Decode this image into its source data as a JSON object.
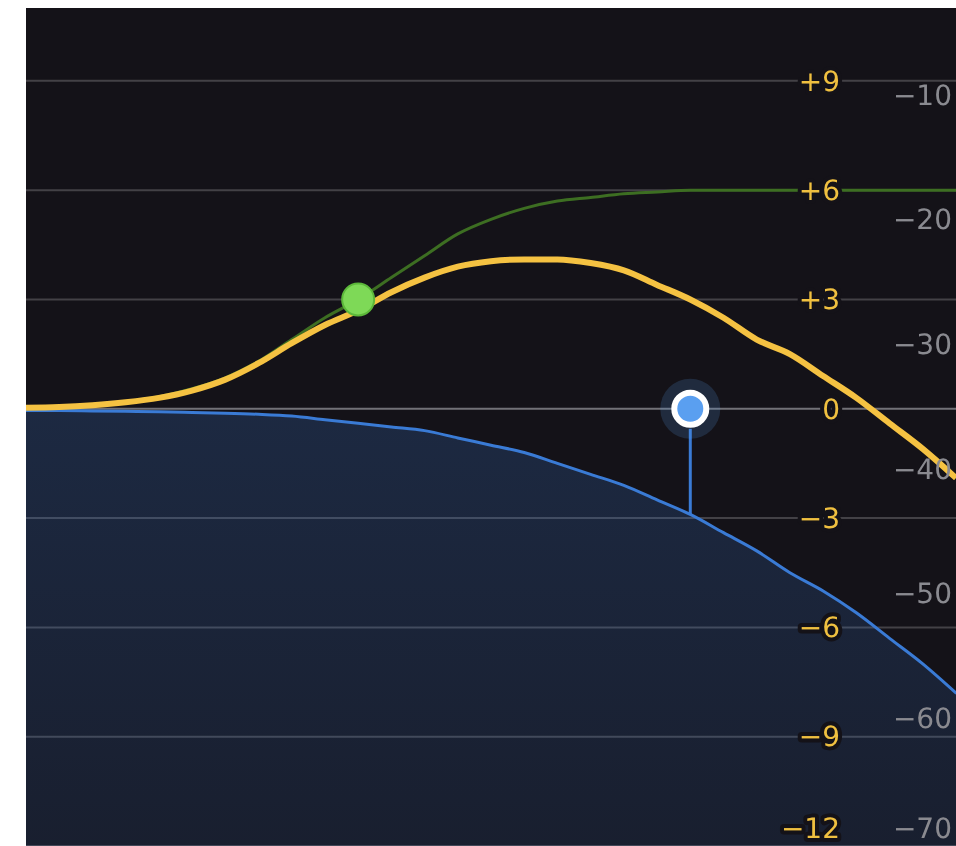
{
  "chart_data": {
    "type": "line",
    "categories": [
      null,
      null,
      null,
      null,
      null,
      null,
      null,
      null,
      null,
      null,
      null,
      null,
      null,
      null,
      null,
      null,
      null,
      null,
      null,
      null,
      null,
      null,
      null,
      null,
      null,
      null,
      null,
      null,
      null
    ],
    "series": [
      {
        "type": "area",
        "color": "#3a7bd5",
        "values": [
          -0.05,
          -0.05,
          -0.06,
          -0.07,
          -0.08,
          -0.1,
          -0.12,
          -0.15,
          -0.2,
          -0.3,
          -0.4,
          -0.5,
          -0.6,
          -0.8,
          -1.0,
          -1.2,
          -1.5,
          -1.8,
          -2.1,
          -2.5,
          -2.9,
          -3.4,
          -3.9,
          -4.5,
          -5.0,
          -5.6,
          -6.3,
          -7.0,
          -7.8
        ]
      },
      {
        "color": "#3d6e22",
        "values": [
          0.05,
          0.07,
          0.12,
          0.2,
          0.33,
          0.55,
          0.85,
          1.3,
          1.9,
          2.5,
          3.0,
          3.6,
          4.2,
          4.8,
          5.2,
          5.5,
          5.7,
          5.8,
          5.9,
          5.95,
          6.0,
          6.0,
          6.0,
          6.0,
          6.0,
          6.0,
          6.0,
          6.0,
          6.0
        ]
      },
      {
        "color": "#f5c242",
        "values": [
          0.03,
          0.05,
          0.1,
          0.18,
          0.3,
          0.5,
          0.8,
          1.25,
          1.8,
          2.3,
          2.7,
          3.2,
          3.6,
          3.9,
          4.05,
          4.1,
          4.1,
          4.0,
          3.8,
          3.4,
          3.0,
          2.5,
          1.9,
          1.5,
          0.9,
          0.3,
          -0.4,
          -1.1,
          -1.9
        ]
      },
      {
        "type": "scatter",
        "marker": "circle",
        "color": "#7ed957",
        "values": [
          null,
          null,
          null,
          null,
          null,
          null,
          null,
          null,
          null,
          null,
          3,
          null,
          null,
          null,
          null,
          null,
          null,
          null,
          null,
          null,
          null,
          null,
          null,
          null,
          null,
          null,
          null,
          null,
          null
        ]
      },
      {
        "type": "scatter",
        "marker": "circle",
        "color": "#5a9ff0",
        "values": [
          null,
          null,
          null,
          null,
          null,
          null,
          null,
          null,
          null,
          null,
          null,
          null,
          null,
          null,
          null,
          null,
          null,
          null,
          null,
          null,
          0,
          null,
          null,
          null,
          null,
          null,
          null,
          null,
          null
        ]
      }
    ],
    "ylim": [
      -12,
      11
    ],
    "yticks": [
      {
        "value": 9,
        "label": "+9"
      },
      {
        "value": 6,
        "label": "+6"
      },
      {
        "value": 3,
        "label": "+3"
      },
      0,
      {
        "value": -3,
        "label": "−3"
      },
      {
        "value": -6,
        "label": "−6"
      },
      {
        "value": -9,
        "label": "−9"
      },
      {
        "value": -12,
        "label": "−12"
      }
    ],
    "y2lim": [
      -70.3,
      -3
    ],
    "y2ticks": [
      {
        "value": -10,
        "label": "−10"
      },
      {
        "value": -20,
        "label": "−20"
      },
      {
        "value": -30,
        "label": "−30"
      },
      {
        "value": -40,
        "label": "−40"
      },
      {
        "value": -50,
        "label": "−50"
      },
      {
        "value": -60,
        "label": "−60"
      },
      {
        "value": -70,
        "label": "−70"
      }
    ],
    "grid": "y",
    "tick_labels": "y"
  }
}
